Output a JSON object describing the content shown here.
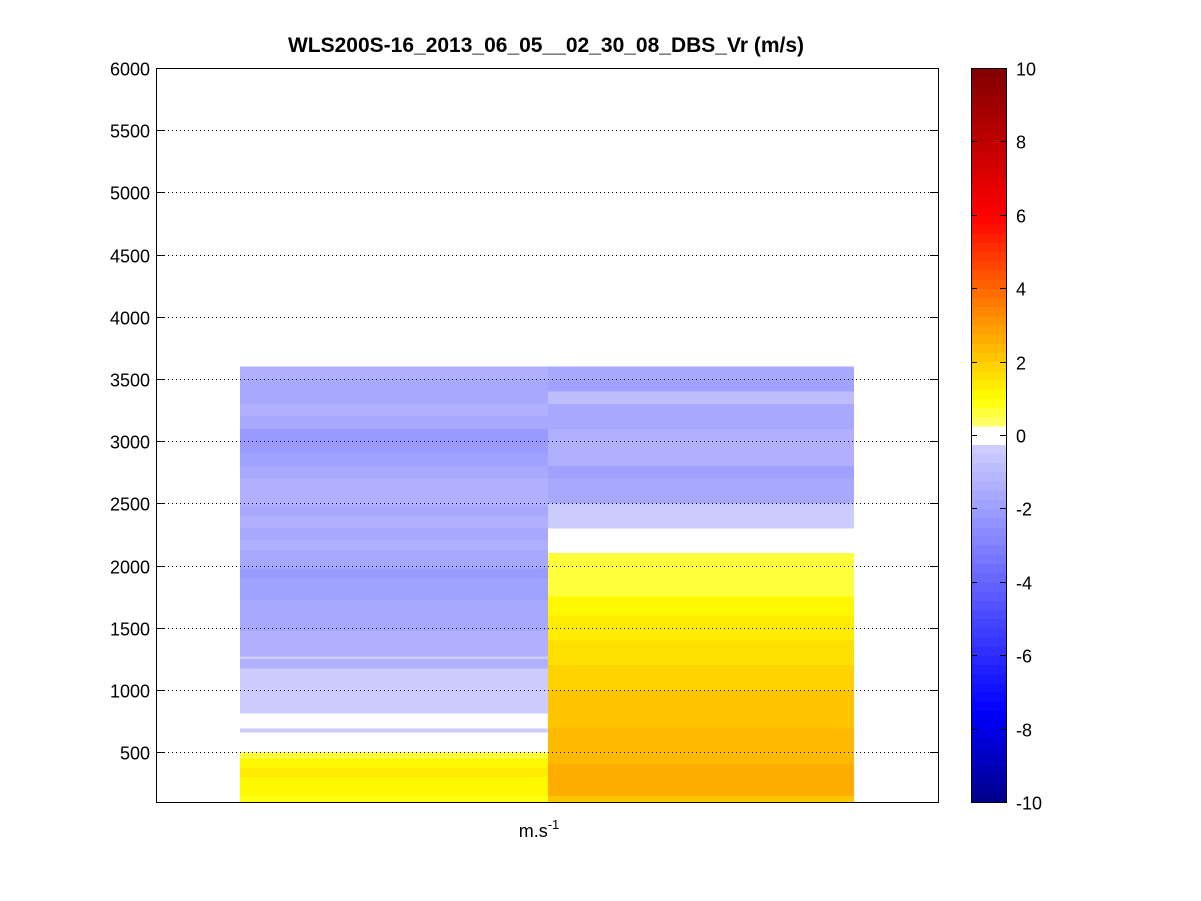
{
  "figure": {
    "title": "WLS200S-16_2013_06_05__02_30_08_DBS_Vr (m/s)",
    "xlabel_base": "m.s",
    "xlabel_sup": "-1"
  },
  "chart_data": {
    "type": "heatmap",
    "title": "WLS200S-16_2013_06_05__02_30_08_DBS_Vr (m/s)",
    "xlabel": "m.s-1",
    "ylabel": "",
    "ylim": [
      100,
      6000
    ],
    "yticks": [
      500,
      1000,
      1500,
      2000,
      2500,
      3000,
      3500,
      4000,
      4500,
      5000,
      5500,
      6000
    ],
    "grid": "horizontal dotted",
    "colorbar": {
      "position": "right",
      "clim": [
        -10,
        10
      ],
      "ticks": [
        -10,
        -8,
        -6,
        -4,
        -2,
        0,
        2,
        4,
        6,
        8,
        10
      ],
      "colormap": "blue-white-yellow-red, 80 levels"
    },
    "profiles": [
      {
        "cells": [
          {
            "y0": 100,
            "y1": 150,
            "v": 0.9
          },
          {
            "y0": 150,
            "y1": 200,
            "v": 1.2
          },
          {
            "y0": 200,
            "y1": 300,
            "v": 1.0
          },
          {
            "y0": 300,
            "y1": 375,
            "v": 1.3
          },
          {
            "y0": 375,
            "y1": 450,
            "v": 1.1
          },
          {
            "y0": 450,
            "y1": 500,
            "v": 0.5
          },
          {
            "y0": 500,
            "y1": 660,
            "v": 0.0
          },
          {
            "y0": 660,
            "y1": 690,
            "v": -0.3
          },
          {
            "y0": 690,
            "y1": 810,
            "v": 0.0
          },
          {
            "y0": 810,
            "y1": 1175,
            "v": -0.4
          },
          {
            "y0": 1175,
            "y1": 1250,
            "v": -1.5
          },
          {
            "y0": 1250,
            "y1": 1270,
            "v": -0.5
          },
          {
            "y0": 1270,
            "y1": 1300,
            "v": -1.3
          },
          {
            "y0": 1300,
            "y1": 1475,
            "v": -1.4
          },
          {
            "y0": 1475,
            "y1": 1725,
            "v": -1.6
          },
          {
            "y0": 1725,
            "y1": 1900,
            "v": -1.8
          },
          {
            "y0": 1900,
            "y1": 1975,
            "v": -2.1
          },
          {
            "y0": 1975,
            "y1": 2125,
            "v": -1.6
          },
          {
            "y0": 2125,
            "y1": 2200,
            "v": -1.4
          },
          {
            "y0": 2200,
            "y1": 2300,
            "v": -1.6
          },
          {
            "y0": 2300,
            "y1": 2400,
            "v": -1.4
          },
          {
            "y0": 2400,
            "y1": 2475,
            "v": -1.6
          },
          {
            "y0": 2475,
            "y1": 2700,
            "v": -1.5
          },
          {
            "y0": 2700,
            "y1": 2800,
            "v": -1.7
          },
          {
            "y0": 2800,
            "y1": 2900,
            "v": -1.9
          },
          {
            "y0": 2900,
            "y1": 3100,
            "v": -2.1
          },
          {
            "y0": 3100,
            "y1": 3200,
            "v": -1.7
          },
          {
            "y0": 3200,
            "y1": 3300,
            "v": -1.3
          },
          {
            "y0": 3300,
            "y1": 3500,
            "v": -1.7
          },
          {
            "y0": 3500,
            "y1": 3600,
            "v": -1.3
          }
        ]
      },
      {
        "cells": [
          {
            "y0": 100,
            "y1": 150,
            "v": 2.1
          },
          {
            "y0": 150,
            "y1": 300,
            "v": 2.5
          },
          {
            "y0": 300,
            "y1": 400,
            "v": 2.6
          },
          {
            "y0": 400,
            "y1": 700,
            "v": 2.3
          },
          {
            "y0": 700,
            "y1": 800,
            "v": 2.1
          },
          {
            "y0": 800,
            "y1": 900,
            "v": 2.2
          },
          {
            "y0": 900,
            "y1": 1000,
            "v": 2.0
          },
          {
            "y0": 1000,
            "y1": 1100,
            "v": 1.9
          },
          {
            "y0": 1100,
            "y1": 1200,
            "v": 1.8
          },
          {
            "y0": 1200,
            "y1": 1400,
            "v": 1.5
          },
          {
            "y0": 1400,
            "y1": 1600,
            "v": 1.3
          },
          {
            "y0": 1600,
            "y1": 1725,
            "v": 1.2
          },
          {
            "y0": 1725,
            "y1": 1750,
            "v": 1.0
          },
          {
            "y0": 1750,
            "y1": 2100,
            "v": 0.5
          },
          {
            "y0": 2100,
            "y1": 2300,
            "v": 0.0
          },
          {
            "y0": 2300,
            "y1": 2500,
            "v": -0.4
          },
          {
            "y0": 2500,
            "y1": 2700,
            "v": -1.6
          },
          {
            "y0": 2700,
            "y1": 2800,
            "v": -1.8
          },
          {
            "y0": 2800,
            "y1": 3100,
            "v": -1.5
          },
          {
            "y0": 3100,
            "y1": 3300,
            "v": -1.7
          },
          {
            "y0": 3300,
            "y1": 3400,
            "v": -1.0
          },
          {
            "y0": 3400,
            "y1": 3500,
            "v": -1.8
          },
          {
            "y0": 3500,
            "y1": 3600,
            "v": -1.6
          }
        ]
      }
    ]
  }
}
